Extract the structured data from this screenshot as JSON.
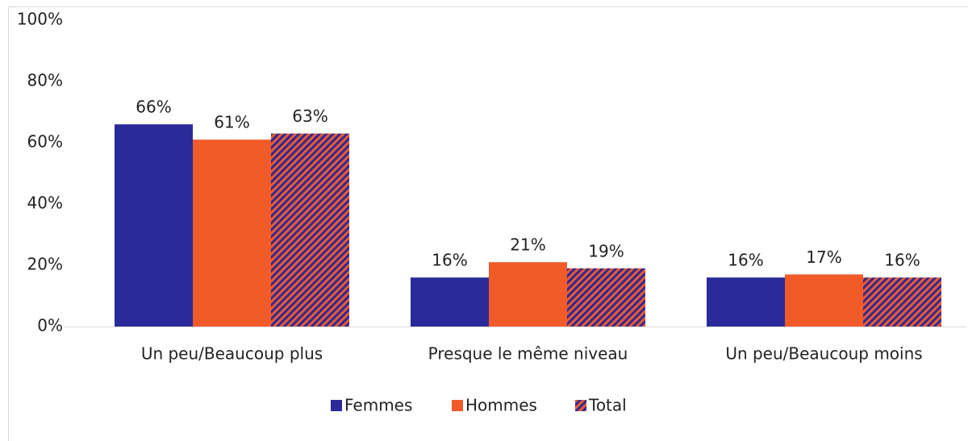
{
  "chart_data": {
    "type": "bar",
    "categories": [
      "Un peu/Beaucoup plus",
      "Presque le même niveau",
      "Un peu/Beaucoup moins"
    ],
    "series": [
      {
        "name": "Femmes",
        "color": "#2b2a9b",
        "values": [
          66,
          16,
          16
        ],
        "value_labels": [
          "66%",
          "16%",
          "16%"
        ]
      },
      {
        "name": "Hommes",
        "color": "#f15a29",
        "values": [
          61,
          21,
          17
        ],
        "value_labels": [
          "61%",
          "21%",
          "17%"
        ]
      },
      {
        "name": "Total",
        "color": "#f15a29",
        "hatch_color": "#2b2a9b",
        "values": [
          63,
          19,
          16
        ],
        "value_labels": [
          "63%",
          "19%",
          "16%"
        ]
      }
    ],
    "ylim": [
      0,
      100
    ],
    "yticks": [
      {
        "value": 0,
        "label": "0%"
      },
      {
        "value": 20,
        "label": "20%"
      },
      {
        "value": 40,
        "label": "40%"
      },
      {
        "value": 60,
        "label": "60%"
      },
      {
        "value": 80,
        "label": "80%"
      },
      {
        "value": 100,
        "label": "100%"
      }
    ],
    "grid": false,
    "legend": "bottom"
  }
}
